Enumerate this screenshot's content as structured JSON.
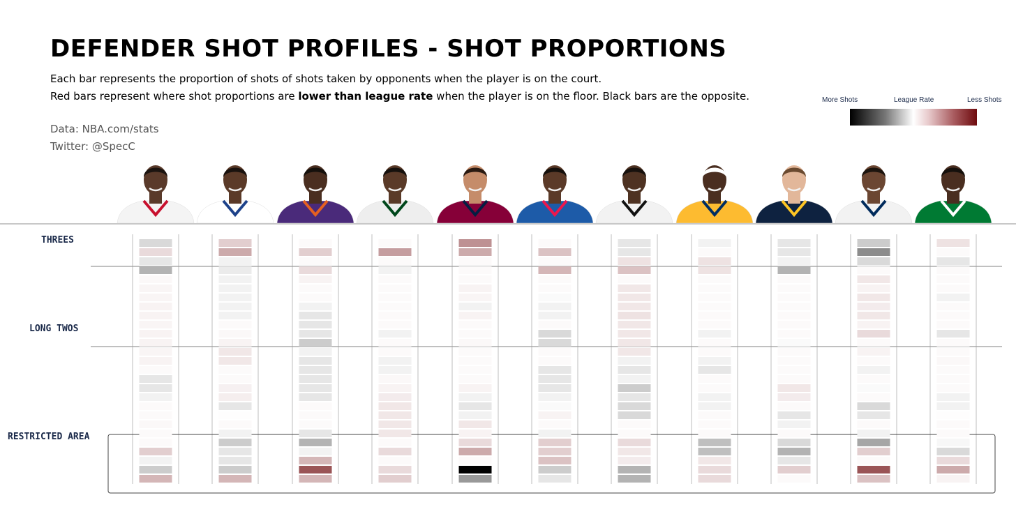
{
  "title": "DEFENDER SHOT PROFILES - SHOT PROPORTIONS",
  "subtitle_line1": "Each bar represents the proportion of shots of shots taken by opponents when the player is on the court.",
  "subtitle_line2_pre": "Red bars represent where shot proportions are ",
  "subtitle_line2_bold": "lower than league rate",
  "subtitle_line2_post": " when the player is on the floor. Black bars are the opposite.",
  "source": "Data: NBA.com/stats",
  "twitter": "Twitter: @SpecC",
  "legend": {
    "more": "More Shots",
    "league": "League Rate",
    "less": "Less Shots",
    "colors": {
      "more": "#000000",
      "league": "#ffffff",
      "less": "#6e0b0e"
    }
  },
  "players": [
    {
      "jersey": "#f4f4f4",
      "trim": "#c8102e",
      "skin": "#5a3a2a",
      "hair": "#1c1410"
    },
    {
      "jersey": "#ffffff",
      "trim": "#1d428a",
      "skin": "#5b3a28",
      "hair": "#1a120e"
    },
    {
      "jersey": "#4a2a7a",
      "trim": "#e56020",
      "skin": "#4a2e20",
      "hair": "#15100c"
    },
    {
      "jersey": "#eeeeee",
      "trim": "#00471b",
      "skin": "#5a3a28",
      "hair": "#16110d"
    },
    {
      "jersey": "#860038",
      "trim": "#041e42",
      "skin": "#c58c6a",
      "hair": "#2a1a12"
    },
    {
      "jersey": "#1d5ba8",
      "trim": "#ed174c",
      "skin": "#5b3a28",
      "hair": "#15100c"
    },
    {
      "jersey": "#f2f2f2",
      "trim": "#111111",
      "skin": "#4e3222",
      "hair": "#17110d"
    },
    {
      "jersey": "#fdbb30",
      "trim": "#002d62",
      "skin": "#4a2e20",
      "hair": "#ffffff"
    },
    {
      "jersey": "#0e2240",
      "trim": "#fec524",
      "skin": "#e2b79a",
      "hair": "#6a4a30"
    },
    {
      "jersey": "#f2f2f2",
      "trim": "#002b5c",
      "skin": "#6b4632",
      "hair": "#1c140e"
    },
    {
      "jersey": "#007a33",
      "trim": "#ffffff",
      "skin": "#4a2e20",
      "hair": "#15100c"
    }
  ],
  "chart_data": {
    "type": "heatmap",
    "rows": [
      "THREES",
      "LONG TWOS",
      "RESTRICTED AREA"
    ],
    "n_zones": 27,
    "scale": "negative = more shots (black), positive = less shots (red)",
    "values": [
      [
        -0.15,
        0.15,
        -0.1,
        -0.3,
        0.03,
        0.04,
        0.04,
        0.05,
        0.05,
        0.04,
        0.05,
        0.05,
        0.04,
        0.05,
        0.02,
        -0.1,
        -0.1,
        -0.05,
        0,
        0.02,
        0.03,
        0.02,
        0.02,
        0.2,
        -0.05,
        -0.2,
        0.3
      ],
      [
        0.2,
        0.35,
        -0.05,
        -0.08,
        -0.05,
        -0.05,
        -0.05,
        -0.05,
        -0.05,
        0,
        0.03,
        0.05,
        0.1,
        0.1,
        0,
        0.02,
        0.06,
        0.07,
        -0.1,
        0.01,
        0.02,
        -0.05,
        -0.2,
        -0.1,
        -0.1,
        -0.2,
        0.3
      ],
      [
        0,
        0.2,
        0,
        0.15,
        0.05,
        0.02,
        0,
        -0.05,
        -0.1,
        -0.1,
        -0.1,
        -0.2,
        -0.05,
        -0.1,
        -0.1,
        -0.1,
        -0.1,
        -0.1,
        0,
        0,
        0,
        -0.1,
        -0.3,
        -0.05,
        0.3,
        0.7,
        0.3
      ],
      [
        0,
        0.4,
        0,
        -0.05,
        0,
        0.02,
        0,
        0,
        0,
        0,
        -0.05,
        0,
        0,
        -0.05,
        -0.05,
        0.03,
        0.05,
        0.08,
        0.1,
        0.1,
        0.1,
        0.1,
        0.02,
        0.15,
        0,
        0.15,
        0.2
      ],
      [
        0.45,
        0.35,
        0,
        0,
        0,
        0.05,
        0.04,
        -0.05,
        0.05,
        0,
        0,
        0.03,
        0,
        0,
        0,
        0,
        0.05,
        -0.05,
        -0.1,
        -0.05,
        0.1,
        0.05,
        0.15,
        0.35,
        0,
        -1,
        -0.4
      ],
      [
        0,
        0.25,
        0,
        0.3,
        0,
        0,
        -0.02,
        -0.05,
        -0.05,
        0,
        -0.15,
        -0.15,
        0,
        0,
        -0.1,
        -0.1,
        -0.1,
        -0.05,
        -0.02,
        0.05,
        0,
        -0.05,
        0.2,
        0.2,
        0.25,
        -0.2,
        -0.1
      ],
      [
        -0.1,
        -0.1,
        0.12,
        0.25,
        0,
        0.1,
        0.1,
        0.1,
        0.12,
        0.1,
        0.1,
        0.1,
        0.1,
        -0.05,
        -0.1,
        -0.05,
        -0.2,
        -0.1,
        -0.15,
        -0.15,
        0,
        0,
        0.15,
        0.1,
        0.08,
        -0.3,
        -0.3
      ],
      [
        -0.05,
        0,
        0.12,
        0.12,
        0,
        0,
        0,
        0,
        0,
        0,
        -0.05,
        0,
        0,
        -0.05,
        -0.1,
        0,
        0,
        -0.05,
        -0.05,
        0,
        0,
        0,
        -0.25,
        -0.25,
        0.1,
        0.15,
        0.15
      ],
      [
        -0.1,
        -0.1,
        -0.05,
        -0.3,
        0,
        0,
        0,
        0,
        0,
        0,
        0,
        -0.02,
        0,
        0,
        0,
        0,
        0.1,
        0.08,
        0,
        -0.1,
        -0.05,
        0,
        -0.15,
        -0.3,
        -0.1,
        0.2,
        0.02
      ],
      [
        -0.2,
        -0.45,
        -0.15,
        0,
        0.1,
        0.05,
        0.1,
        0.08,
        0.1,
        0.05,
        0.15,
        0,
        0.05,
        0,
        -0.05,
        0,
        -0.02,
        0,
        -0.15,
        -0.1,
        0,
        -0.05,
        -0.35,
        0.2,
        0.02,
        0.7,
        0.25
      ],
      [
        0.12,
        0,
        -0.1,
        0,
        0,
        0,
        -0.05,
        0,
        0,
        0,
        -0.1,
        0,
        0,
        0.03,
        0,
        0.02,
        0.02,
        -0.05,
        -0.05,
        0.01,
        0,
        0,
        -0.03,
        -0.15,
        0.15,
        0.35,
        0.05
      ]
    ]
  }
}
